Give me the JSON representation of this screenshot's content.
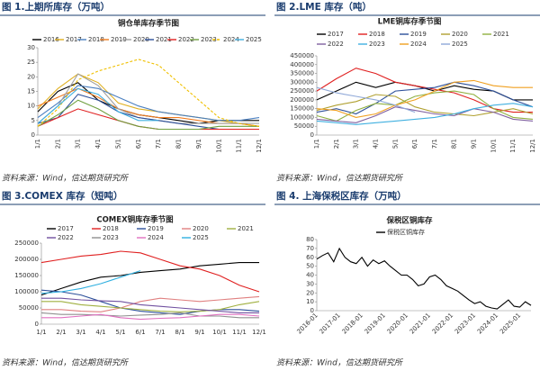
{
  "chart_data": [
    {
      "type": "line",
      "heading": "图 1.上期所库存（万吨）",
      "title": "铜仓单库存季节图",
      "source": "资料来源：Wind，信达期货研究所",
      "categories": [
        "1/1",
        "2/1",
        "3/1",
        "4/1",
        "5/1",
        "6/1",
        "7/1",
        "8/1",
        "9/1",
        "10/1",
        "11/1",
        "12/1"
      ],
      "ylim": [
        0,
        30
      ],
      "yticks": [
        0,
        5,
        10,
        15,
        20,
        25,
        30
      ],
      "series": [
        {
          "name": "2016",
          "color": "#000000",
          "values": [
            8,
            15,
            18,
            12,
            9,
            7,
            6,
            5,
            4,
            5,
            5,
            5
          ]
        },
        {
          "name": "2017",
          "color": "#e0b020",
          "values": [
            9,
            16,
            21,
            18,
            11,
            9,
            8,
            7,
            6,
            5,
            4,
            3
          ]
        },
        {
          "name": "2018",
          "color": "#4a7fc0",
          "values": [
            6,
            11,
            17,
            16,
            13,
            10,
            8,
            7,
            6,
            5,
            5,
            6
          ]
        },
        {
          "name": "2019",
          "color": "#f07c20",
          "values": [
            10,
            13,
            16,
            13,
            9,
            7,
            6,
            6,
            5,
            4,
            4,
            3
          ]
        },
        {
          "name": "2020",
          "color": "#a0a0a0",
          "values": [
            4,
            10,
            21,
            17,
            9,
            6,
            5,
            4,
            4,
            4,
            4,
            4
          ]
        },
        {
          "name": "2021",
          "color": "#2c4f9a",
          "values": [
            4,
            6,
            14,
            12,
            8,
            6,
            5,
            4,
            3,
            2,
            2,
            2
          ]
        },
        {
          "name": "2022",
          "color": "#e02020",
          "values": [
            3,
            6,
            9,
            7,
            5,
            3,
            2,
            2,
            2,
            2,
            2,
            2
          ]
        },
        {
          "name": "2023",
          "color": "#70a040",
          "values": [
            3,
            7,
            12,
            9,
            5,
            3,
            2,
            2,
            2,
            3,
            3,
            3
          ]
        },
        {
          "name": "2024",
          "color": "#f0c000",
          "dashed": true,
          "values": [
            3,
            9,
            19,
            22,
            24,
            26,
            24,
            18,
            12,
            6,
            4,
            3
          ]
        },
        {
          "name": "2025",
          "color": "#40b0e0",
          "values": [
            4,
            10,
            16,
            14,
            8,
            5,
            5,
            null,
            null,
            null,
            null,
            null
          ]
        }
      ]
    },
    {
      "type": "line",
      "heading": "图 2.LME 库存（吨）",
      "title": "LME铜库存季节图",
      "source": "资料来源：Wind，信达期货研究所",
      "categories": [
        "1/1",
        "2/1",
        "3/1",
        "4/1",
        "5/1",
        "6/1",
        "7/1",
        "8/1",
        "9/1",
        "10/1",
        "11/1",
        "12/1"
      ],
      "ylim": [
        0,
        450000
      ],
      "yticks": [
        0,
        50000,
        100000,
        150000,
        200000,
        250000,
        300000,
        350000,
        400000,
        450000
      ],
      "series": [
        {
          "name": "2017",
          "color": "#000000",
          "values": [
            200000,
            250000,
            300000,
            270000,
            300000,
            280000,
            250000,
            280000,
            260000,
            250000,
            200000,
            200000
          ]
        },
        {
          "name": "2018",
          "color": "#e02020",
          "values": [
            250000,
            320000,
            380000,
            350000,
            300000,
            280000,
            260000,
            240000,
            200000,
            150000,
            130000,
            130000
          ]
        },
        {
          "name": "2019",
          "color": "#2c4f9a",
          "values": [
            130000,
            150000,
            120000,
            180000,
            250000,
            260000,
            270000,
            300000,
            280000,
            250000,
            200000,
            160000
          ]
        },
        {
          "name": "2020",
          "color": "#b0a030",
          "values": [
            140000,
            170000,
            190000,
            230000,
            220000,
            160000,
            130000,
            120000,
            110000,
            130000,
            150000,
            120000
          ]
        },
        {
          "name": "2021",
          "color": "#90b040",
          "values": [
            110000,
            80000,
            140000,
            180000,
            170000,
            220000,
            240000,
            250000,
            230000,
            150000,
            100000,
            90000
          ]
        },
        {
          "name": "2022",
          "color": "#8060a0",
          "values": [
            90000,
            80000,
            70000,
            110000,
            160000,
            140000,
            120000,
            110000,
            150000,
            130000,
            90000,
            80000
          ]
        },
        {
          "name": "2023",
          "color": "#40b0e0",
          "values": [
            80000,
            70000,
            60000,
            70000,
            80000,
            90000,
            100000,
            120000,
            150000,
            170000,
            180000,
            160000
          ]
        },
        {
          "name": "2024",
          "color": "#f0a020",
          "values": [
            150000,
            140000,
            100000,
            120000,
            170000,
            200000,
            250000,
            300000,
            310000,
            280000,
            270000,
            270000
          ]
        },
        {
          "name": "2025",
          "color": "#8fa8d8",
          "values": [
            270000,
            240000,
            220000,
            200000,
            170000,
            130000,
            null,
            null,
            null,
            null,
            null,
            null
          ]
        }
      ]
    },
    {
      "type": "line",
      "heading": "图 3.COMEX 库存（短吨）",
      "title": "COMEX铜库存季节图",
      "source": "资料来源：Wind，信达期货研究所",
      "categories": [
        "1/1",
        "2/1",
        "3/1",
        "4/1",
        "5/1",
        "6/1",
        "7/1",
        "8/1",
        "9/1",
        "10/1",
        "11/1",
        "12/1"
      ],
      "ylim": [
        0,
        250000
      ],
      "yticks": [
        0,
        50000,
        100000,
        150000,
        200000,
        250000
      ],
      "series": [
        {
          "name": "2017",
          "color": "#000000",
          "values": [
            90000,
            110000,
            130000,
            145000,
            150000,
            160000,
            165000,
            170000,
            180000,
            185000,
            190000,
            190000
          ]
        },
        {
          "name": "2018",
          "color": "#e02020",
          "values": [
            190000,
            200000,
            210000,
            215000,
            225000,
            220000,
            200000,
            180000,
            170000,
            150000,
            120000,
            100000
          ]
        },
        {
          "name": "2019",
          "color": "#2c4f9a",
          "values": [
            105000,
            100000,
            90000,
            70000,
            50000,
            40000,
            35000,
            30000,
            40000,
            45000,
            45000,
            40000
          ]
        },
        {
          "name": "2020",
          "color": "#e08080",
          "values": [
            45000,
            45000,
            40000,
            38000,
            50000,
            70000,
            80000,
            75000,
            70000,
            75000,
            80000,
            85000
          ]
        },
        {
          "name": "2021",
          "color": "#a0b040",
          "values": [
            70000,
            70000,
            60000,
            55000,
            50000,
            45000,
            40000,
            38000,
            40000,
            45000,
            60000,
            70000
          ]
        },
        {
          "name": "2022",
          "color": "#7050a0",
          "values": [
            80000,
            80000,
            75000,
            72000,
            70000,
            60000,
            55000,
            50000,
            45000,
            40000,
            35000,
            35000
          ]
        },
        {
          "name": "2023",
          "color": "#909090",
          "values": [
            35000,
            30000,
            30000,
            28000,
            25000,
            28000,
            30000,
            35000,
            25000,
            25000,
            20000,
            20000
          ]
        },
        {
          "name": "2024",
          "color": "#e070c0",
          "values": [
            20000,
            20000,
            25000,
            30000,
            20000,
            15000,
            18000,
            20000,
            25000,
            30000,
            30000,
            25000
          ]
        },
        {
          "name": "2025",
          "color": "#30b0e0",
          "values": [
            95000,
            100000,
            110000,
            125000,
            145000,
            165000,
            null,
            null,
            null,
            null,
            null,
            null
          ]
        }
      ]
    },
    {
      "type": "line",
      "heading": "图 4. 上海保税区库存（万吨）",
      "title": "保税区铜库存",
      "source": "资料来源：Wind，信达期货研究所",
      "x": [
        "2016-01",
        "2016-04",
        "2016-07",
        "2016-10",
        "2017-01",
        "2017-04",
        "2017-07",
        "2017-10",
        "2018-01",
        "2018-04",
        "2018-07",
        "2018-10",
        "2019-01",
        "2019-04",
        "2019-07",
        "2019-10",
        "2020-01",
        "2020-04",
        "2020-07",
        "2020-10",
        "2021-01",
        "2021-04",
        "2021-07",
        "2021-10",
        "2022-01",
        "2022-04",
        "2022-07",
        "2022-10",
        "2023-01",
        "2023-04",
        "2023-07",
        "2023-10",
        "2024-01",
        "2024-04",
        "2024-07",
        "2024-10",
        "2025-01",
        "2025-04",
        "2025-07"
      ],
      "xticks": [
        "2016-01",
        "2017-01",
        "2018-01",
        "2019-01",
        "2020-01",
        "2021-01",
        "2022-01",
        "2023-01",
        "2024-01",
        "2025-01"
      ],
      "ylim": [
        0,
        80
      ],
      "yticks": [
        0,
        10,
        20,
        30,
        40,
        50,
        60,
        70,
        80
      ],
      "series": [
        {
          "name": "保税区铜库存",
          "color": "#000000",
          "values": [
            58,
            62,
            65,
            55,
            70,
            60,
            55,
            53,
            60,
            50,
            57,
            53,
            56,
            50,
            45,
            40,
            40,
            35,
            28,
            30,
            38,
            40,
            35,
            28,
            25,
            22,
            17,
            12,
            8,
            10,
            5,
            3,
            2,
            7,
            12,
            5,
            4,
            10,
            6
          ]
        }
      ]
    }
  ]
}
